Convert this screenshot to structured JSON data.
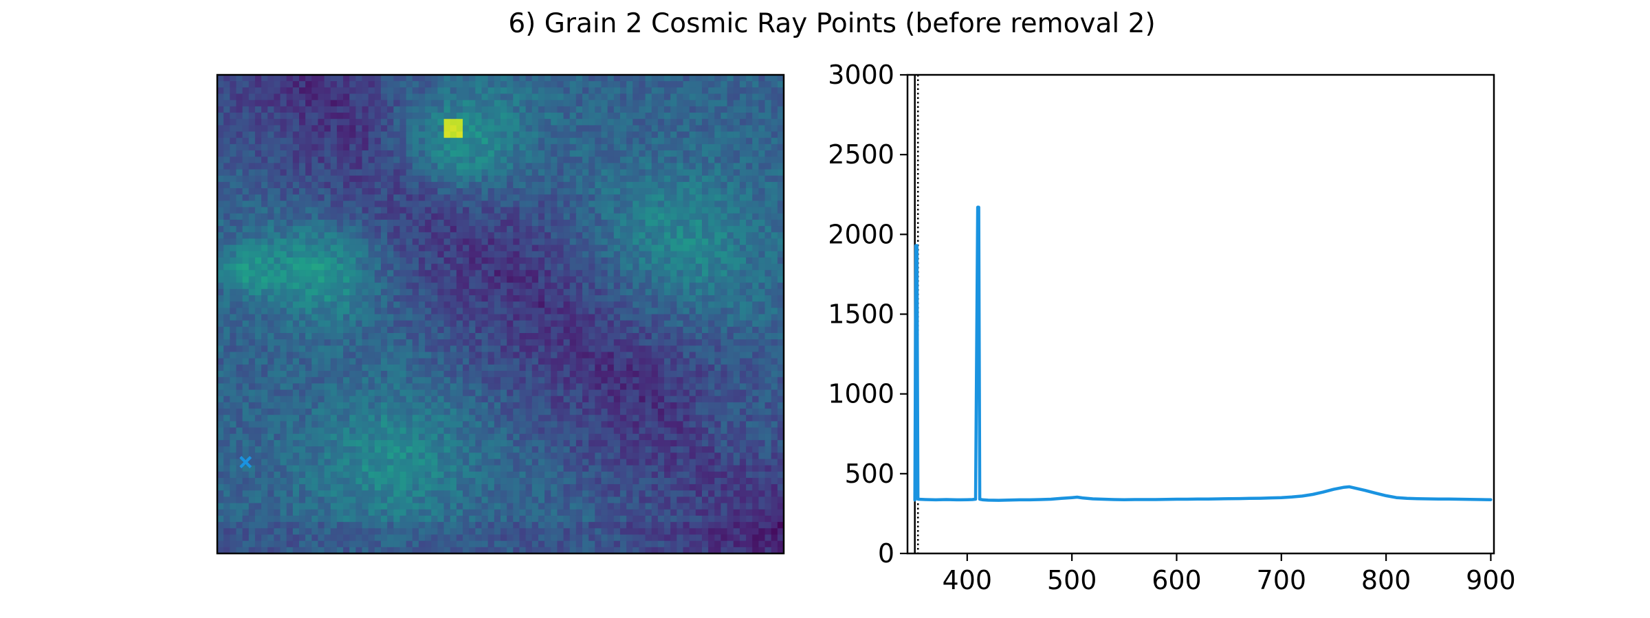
{
  "title": "6) Grain 2 Cosmic Ray Points (before removal 2)",
  "colors": {
    "spectrum_line": "#1a93e0",
    "marker": "#1a93e0",
    "axis": "#000000",
    "dotted_line": "#000000",
    "colormap": "viridis"
  },
  "chart_data": [
    {
      "type": "heatmap",
      "colormap": "viridis",
      "axes_visible": false,
      "description_grid": [
        90,
        76
      ],
      "marker": {
        "shape": "x-filled",
        "color": "#1a93e0",
        "grid_col": 4,
        "grid_row": 61
      }
    },
    {
      "type": "line",
      "xlim": [
        343,
        903
      ],
      "ylim": [
        0,
        3000
      ],
      "x_ticks": [
        400,
        500,
        600,
        700,
        800,
        900
      ],
      "y_ticks": [
        0,
        500,
        1000,
        1500,
        2000,
        2500,
        3000
      ],
      "x_tick_labels": [
        "400",
        "500",
        "600",
        "700",
        "800",
        "900"
      ],
      "y_tick_labels": [
        "0",
        "500",
        "1000",
        "1500",
        "2000",
        "2500",
        "3000"
      ],
      "xlabel": "",
      "ylabel": "",
      "grid": false,
      "vlines": [
        {
          "x": 350,
          "style": "solid"
        },
        {
          "x": 353,
          "style": "dotted"
        }
      ],
      "series": [
        {
          "color": "#1a93e0",
          "points": [
            [
              350,
              335
            ],
            [
              351,
              1930
            ],
            [
              352,
              1930
            ],
            [
              353,
              340
            ],
            [
              360,
              338
            ],
            [
              370,
              336
            ],
            [
              380,
              338
            ],
            [
              390,
              336
            ],
            [
              400,
              337
            ],
            [
              405,
              338
            ],
            [
              408,
              340
            ],
            [
              410,
              2170
            ],
            [
              411,
              2170
            ],
            [
              412,
              340
            ],
            [
              415,
              336
            ],
            [
              420,
              334
            ],
            [
              430,
              333
            ],
            [
              440,
              335
            ],
            [
              450,
              336
            ],
            [
              460,
              336
            ],
            [
              470,
              338
            ],
            [
              480,
              340
            ],
            [
              490,
              345
            ],
            [
              500,
              350
            ],
            [
              505,
              353
            ],
            [
              510,
              348
            ],
            [
              520,
              342
            ],
            [
              530,
              340
            ],
            [
              540,
              338
            ],
            [
              550,
              337
            ],
            [
              560,
              338
            ],
            [
              570,
              338
            ],
            [
              580,
              338
            ],
            [
              590,
              339
            ],
            [
              600,
              340
            ],
            [
              610,
              340
            ],
            [
              620,
              341
            ],
            [
              630,
              341
            ],
            [
              640,
              342
            ],
            [
              650,
              343
            ],
            [
              660,
              344
            ],
            [
              670,
              345
            ],
            [
              680,
              346
            ],
            [
              690,
              348
            ],
            [
              700,
              350
            ],
            [
              710,
              354
            ],
            [
              720,
              360
            ],
            [
              730,
              370
            ],
            [
              740,
              385
            ],
            [
              750,
              402
            ],
            [
              760,
              415
            ],
            [
              765,
              418
            ],
            [
              770,
              410
            ],
            [
              780,
              395
            ],
            [
              790,
              378
            ],
            [
              800,
              362
            ],
            [
              810,
              350
            ],
            [
              820,
              345
            ],
            [
              830,
              343
            ],
            [
              840,
              342
            ],
            [
              850,
              341
            ],
            [
              860,
              341
            ],
            [
              870,
              340
            ],
            [
              880,
              339
            ],
            [
              890,
              338
            ],
            [
              900,
              337
            ]
          ]
        }
      ]
    }
  ]
}
